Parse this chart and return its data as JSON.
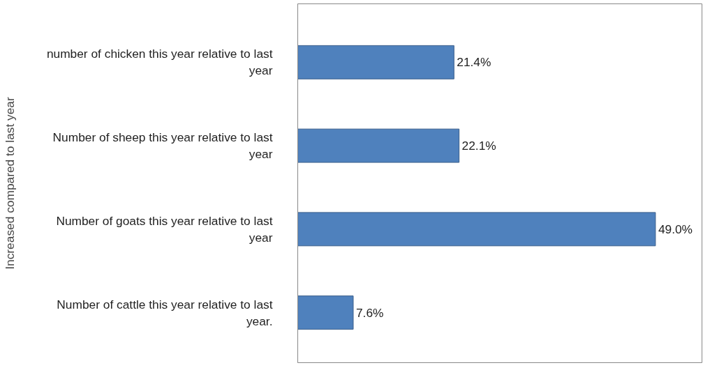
{
  "chart_data": {
    "type": "bar",
    "orientation": "horizontal",
    "ylabel": "Increased compared to last year",
    "categories": [
      "number of chicken this year relative to last year",
      "Number of sheep this year relative to last year",
      "Number of goats this year relative to last year",
      "Number of cattle this year relative to last year."
    ],
    "values": [
      21.4,
      22.1,
      49.0,
      7.6
    ],
    "value_labels": [
      "21.4%",
      "22.1%",
      "49.0%",
      "7.6%"
    ],
    "color": "#4f81bd"
  }
}
